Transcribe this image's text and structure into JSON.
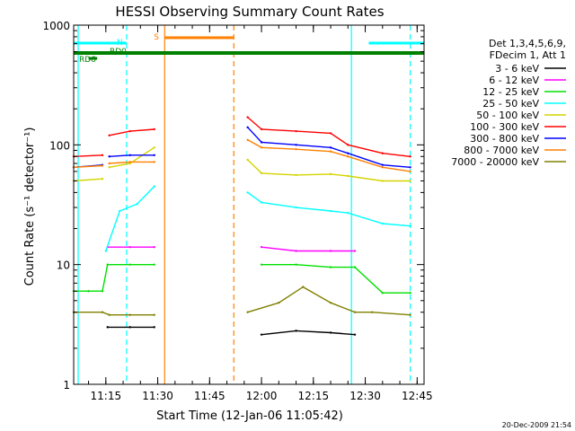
{
  "chart_data": {
    "type": "line",
    "title": "HESSI Observing Summary Count Rates",
    "xlabel": "Start Time (12-Jan-06 11:05:42)",
    "ylabel": "Count Rate (s⁻¹ detector⁻¹)",
    "x_unit": "time (UT, HH:MM)",
    "x_range": [
      "11:05:42",
      "12:47:00"
    ],
    "x_ticks": [
      "11:15",
      "11:30",
      "11:45",
      "12:00",
      "12:15",
      "12:30",
      "12:45"
    ],
    "y_scale": "log",
    "ylim": [
      1,
      1000
    ],
    "y_ticks": [
      "1",
      "10",
      "100",
      "1000"
    ],
    "grid": false,
    "legend_position": "right",
    "legend_header": [
      "Det 1,3,4,5,6,9,",
      "FDecim 1, Att 1"
    ],
    "timestamp": "20-Dec-2009 21:54",
    "series": [
      {
        "name": "3 - 6 keV",
        "color": "#000000",
        "x": [
          "11:05:42",
          "11:15:00",
          "11:15:30",
          "11:22:00",
          "11:29:00",
          "11:32:00",
          "12:00:00",
          "12:10:00",
          "12:20:00",
          "12:27:00",
          "12:32:00",
          "12:40:00",
          "12:43:00"
        ],
        "y": [
          null,
          null,
          3.0,
          3.0,
          3.0,
          null,
          2.6,
          2.8,
          2.7,
          2.6,
          null,
          null,
          null
        ]
      },
      {
        "name": "6 - 12 keV",
        "color": "#ff00ff",
        "x": [
          "11:05:42",
          "11:15:00",
          "11:15:30",
          "11:22:00",
          "11:29:00",
          "11:32:00",
          "11:55:00",
          "12:00:00",
          "12:10:00",
          "12:20:00",
          "12:27:00",
          "12:32:00",
          "12:43:00"
        ],
        "y": [
          null,
          null,
          14,
          14,
          14,
          null,
          null,
          14,
          13,
          13,
          13,
          null,
          null
        ]
      },
      {
        "name": "12 - 25 keV",
        "color": "#00e000",
        "x": [
          "11:05:42",
          "11:10:00",
          "11:14:00",
          "11:15:30",
          "11:22:00",
          "11:29:00",
          "11:55:00",
          "12:00:00",
          "12:10:00",
          "12:20:00",
          "12:27:00",
          "12:35:00",
          "12:43:00"
        ],
        "y": [
          6,
          6,
          6,
          10,
          10,
          10,
          null,
          10,
          10,
          9.5,
          9.5,
          5.8,
          5.8
        ]
      },
      {
        "name": "25 - 50 keV",
        "color": "#00ffff",
        "x": [
          "11:05:42",
          "11:14:00",
          "11:15:00",
          "11:19:00",
          "11:24:00",
          "11:29:00",
          "11:31:00",
          "11:55:00",
          "11:56:00",
          "12:00:00",
          "12:10:00",
          "12:20:00",
          "12:25:00",
          "12:35:00",
          "12:43:00"
        ],
        "y": [
          null,
          null,
          13,
          28,
          32,
          45,
          null,
          null,
          40,
          33,
          30,
          28,
          27,
          22,
          21
        ]
      },
      {
        "name": "50 - 100 keV",
        "color": "#d4d400",
        "x": [
          "11:05:42",
          "11:14:00",
          "11:15:00",
          "11:16:00",
          "11:22:00",
          "11:29:00",
          "11:31:00",
          "11:55:00",
          "11:56:00",
          "12:00:00",
          "12:10:00",
          "12:20:00",
          "12:25:00",
          "12:35:00",
          "12:43:00"
        ],
        "y": [
          50,
          52,
          null,
          65,
          70,
          95,
          null,
          null,
          75,
          58,
          56,
          57,
          55,
          50,
          50
        ]
      },
      {
        "name": "100 - 300 keV",
        "color": "#ff0000",
        "x": [
          "11:05:42",
          "11:14:00",
          "11:15:00",
          "11:16:00",
          "11:22:00",
          "11:29:00",
          "11:31:00",
          "11:55:00",
          "11:56:00",
          "12:00:00",
          "12:10:00",
          "12:20:00",
          "12:25:00",
          "12:35:00",
          "12:43:00"
        ],
        "y": [
          80,
          82,
          null,
          120,
          130,
          135,
          null,
          null,
          170,
          135,
          130,
          125,
          100,
          85,
          80
        ]
      },
      {
        "name": "300 - 800 keV",
        "color": "#0000ff",
        "x": [
          "11:05:42",
          "11:14:00",
          "11:15:00",
          "11:16:00",
          "11:22:00",
          "11:29:00",
          "11:31:00",
          "11:55:00",
          "11:56:00",
          "12:00:00",
          "12:10:00",
          "12:20:00",
          "12:25:00",
          "12:35:00",
          "12:43:00"
        ],
        "y": [
          65,
          68,
          null,
          80,
          82,
          82,
          null,
          null,
          140,
          105,
          100,
          95,
          85,
          68,
          65
        ]
      },
      {
        "name": "800 - 7000 keV",
        "color": "#ff8000",
        "x": [
          "11:05:42",
          "11:14:00",
          "11:15:00",
          "11:16:00",
          "11:22:00",
          "11:29:00",
          "11:31:00",
          "11:55:00",
          "11:56:00",
          "12:00:00",
          "12:10:00",
          "12:20:00",
          "12:25:00",
          "12:35:00",
          "12:43:00"
        ],
        "y": [
          65,
          67,
          null,
          70,
          72,
          72,
          null,
          null,
          110,
          95,
          92,
          88,
          80,
          65,
          60
        ]
      },
      {
        "name": "7000 - 20000 keV",
        "color": "#808000",
        "x": [
          "11:05:42",
          "11:14:00",
          "11:16:00",
          "11:22:00",
          "11:29:00",
          "11:31:00",
          "11:55:00",
          "11:56:00",
          "12:05:00",
          "12:12:00",
          "12:20:00",
          "12:27:00",
          "12:32:00",
          "12:43:00"
        ],
        "y": [
          4.0,
          4.0,
          3.8,
          3.8,
          3.8,
          null,
          null,
          4.0,
          4.8,
          6.5,
          4.8,
          4.0,
          4.0,
          3.8
        ]
      }
    ],
    "markers": {
      "label_N": "N",
      "label_S": "S",
      "label_RD0": "RD0",
      "label_RD6": "RD6",
      "night_bars": [
        {
          "from": "11:05:42",
          "to": "11:21:00"
        },
        {
          "from": "12:31:00",
          "to": "12:47:00"
        }
      ],
      "saa_bar": {
        "from": "11:32:00",
        "to": "11:52:00"
      },
      "rd0_bar": {
        "from": "11:05:42",
        "to": "12:47:00"
      },
      "rd6_bar": {
        "from": "11:10:00",
        "to": "11:12:30"
      },
      "vlines": [
        {
          "t": "11:07:00",
          "color": "#00ffff",
          "style": "solid"
        },
        {
          "t": "11:21:00",
          "color": "#00ffff",
          "style": "dashed"
        },
        {
          "t": "11:32:00",
          "color": "#ff8000",
          "style": "solid"
        },
        {
          "t": "11:52:00",
          "color": "#ff8000",
          "style": "dashed"
        },
        {
          "t": "12:26:00",
          "color": "#00ffff",
          "style": "solid"
        },
        {
          "t": "12:43:00",
          "color": "#00ffff",
          "style": "dashed"
        }
      ],
      "colors": {
        "night": "#00ffff",
        "saa": "#ff8000",
        "rd0": "#008000",
        "rd6": "#008000"
      }
    }
  }
}
